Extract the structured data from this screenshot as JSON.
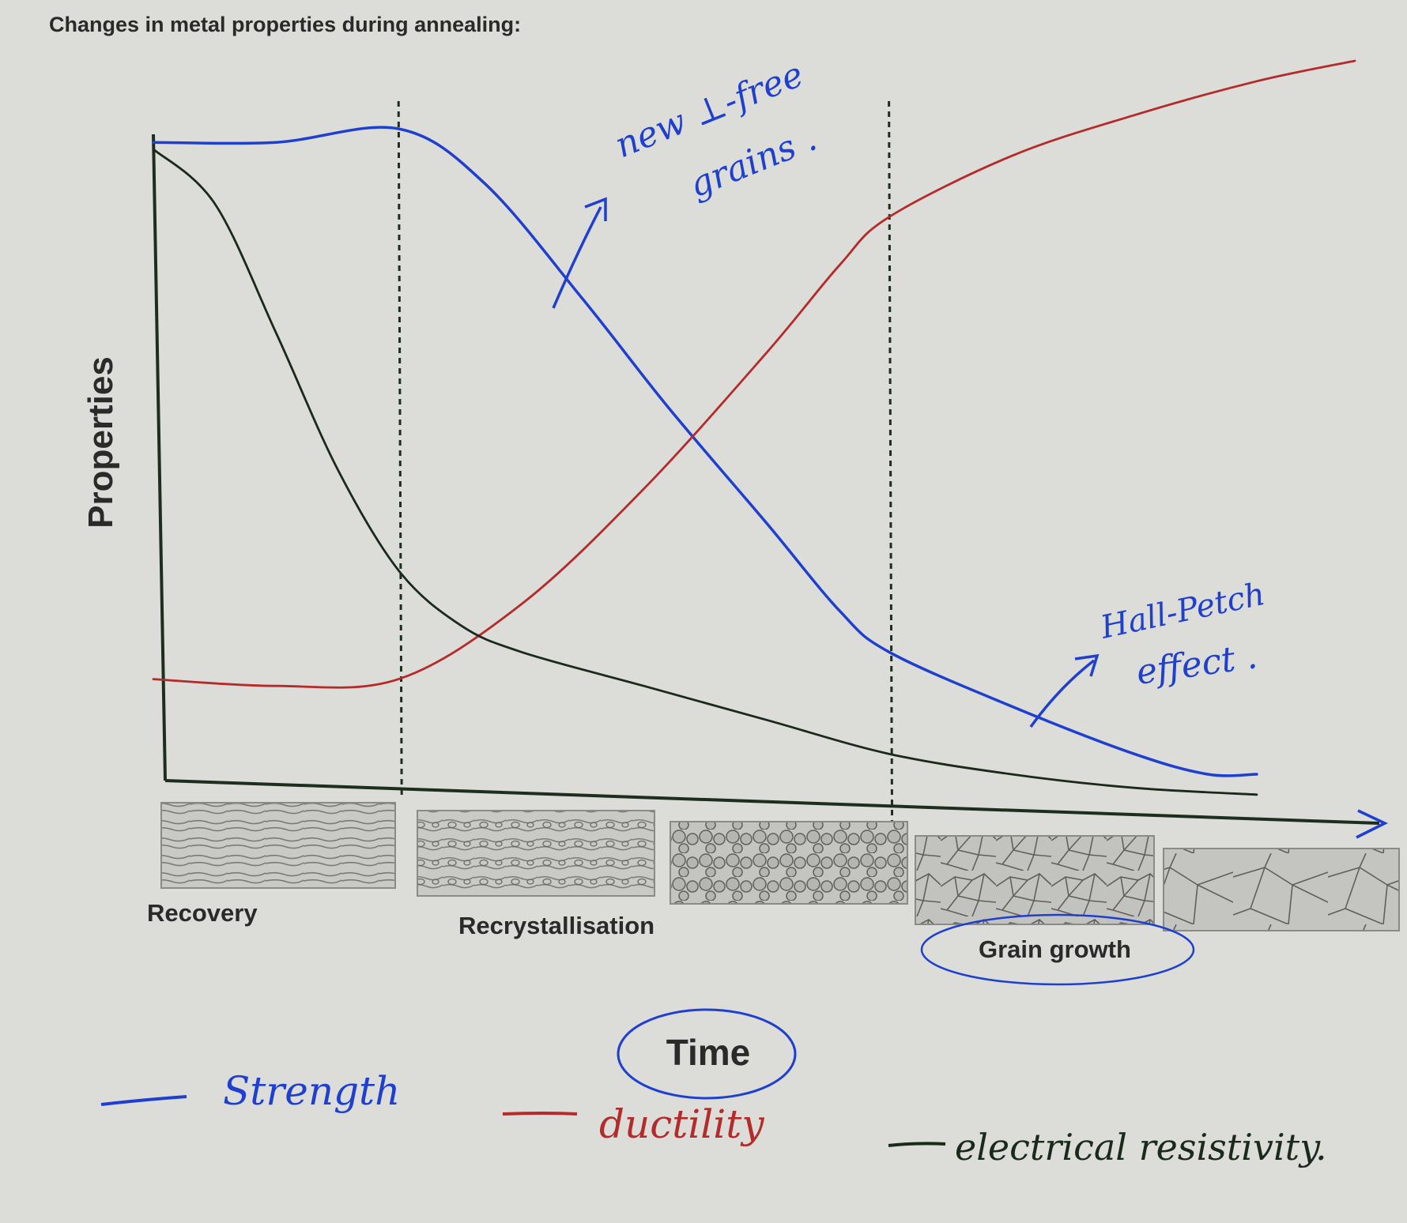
{
  "chart_data": {
    "type": "line",
    "title": "Changes in metal properties during annealing:",
    "xlabel": "Time",
    "ylabel": "Properties",
    "stages": [
      "Recovery",
      "Recrystallisation",
      "Grain growth"
    ],
    "stage_boundaries": [
      0.2,
      0.6
    ],
    "xlim": [
      0,
      1
    ],
    "ylim": [
      0,
      1
    ],
    "grid": false,
    "series": [
      {
        "name": "Strength",
        "color": "#1f3fcf",
        "x": [
          0,
          0.1,
          0.2,
          0.27,
          0.35,
          0.42,
          0.5,
          0.56,
          0.6,
          0.7,
          0.8,
          0.86,
          0.9
        ],
        "values": [
          0.93,
          0.93,
          0.95,
          0.87,
          0.7,
          0.54,
          0.37,
          0.24,
          0.18,
          0.1,
          0.03,
          0.0,
          0.0
        ]
      },
      {
        "name": "ductility",
        "color": "#b52a2a",
        "x": [
          0,
          0.1,
          0.2,
          0.3,
          0.4,
          0.5,
          0.56,
          0.6,
          0.7,
          0.8,
          0.9,
          0.98
        ],
        "values": [
          0.14,
          0.13,
          0.14,
          0.25,
          0.42,
          0.62,
          0.75,
          0.82,
          0.91,
          0.97,
          1.02,
          1.05
        ]
      },
      {
        "name": "electrical resistivity",
        "color": "#1a2a1a",
        "x": [
          0,
          0.05,
          0.1,
          0.15,
          0.2,
          0.25,
          0.3,
          0.4,
          0.5,
          0.6,
          0.7,
          0.8,
          0.9
        ],
        "values": [
          0.92,
          0.84,
          0.65,
          0.45,
          0.3,
          0.22,
          0.18,
          0.13,
          0.08,
          0.03,
          0.0,
          -0.02,
          -0.03
        ]
      }
    ],
    "annotations": {
      "new_grains_line1": "new ⊥-free",
      "new_grains_line2": "grains .",
      "hall_petch_line1": "Hall-Petch",
      "hall_petch_line2": "effect ."
    },
    "legend": {
      "strength": "Strength",
      "ductility": "ductility",
      "resistivity": "electrical resistivity."
    }
  }
}
